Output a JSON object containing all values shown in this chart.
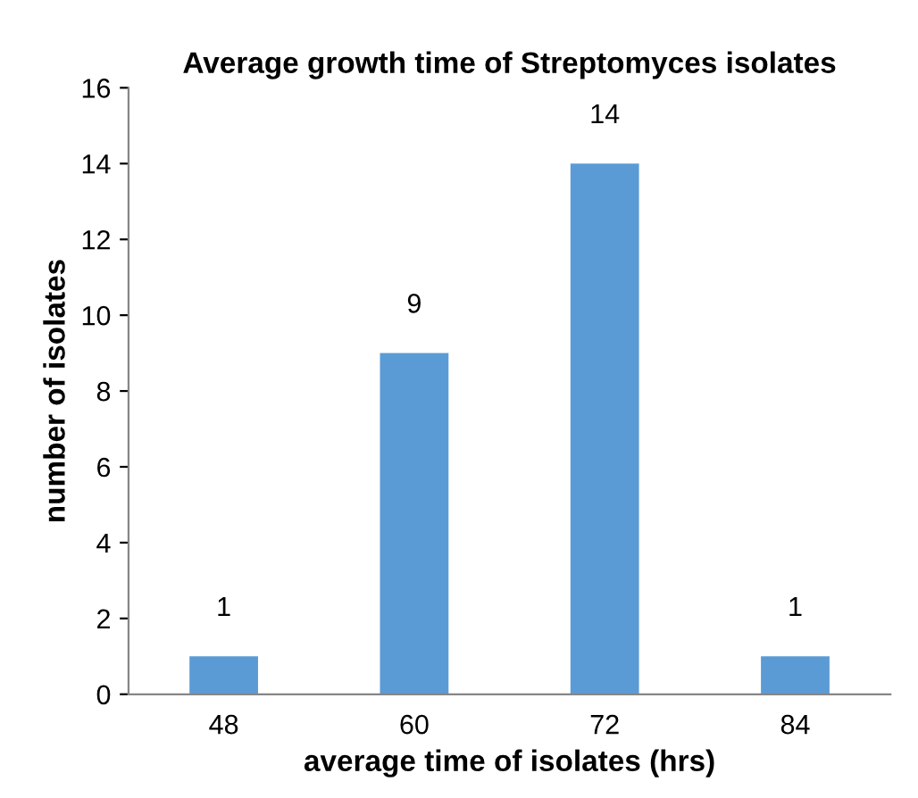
{
  "chart_data": {
    "type": "bar",
    "title": "Average growth time of Streptomyces isolates",
    "xlabel": "average time of isolates (hrs)",
    "ylabel": "number of isolates",
    "categories": [
      "48",
      "60",
      "72",
      "84"
    ],
    "values": [
      1,
      9,
      14,
      1
    ],
    "color": "#5b9bd5",
    "ylim": [
      0,
      16
    ],
    "yticks": [
      0,
      2,
      4,
      6,
      8,
      10,
      12,
      14,
      16
    ],
    "grid": false,
    "data_labels": true
  }
}
